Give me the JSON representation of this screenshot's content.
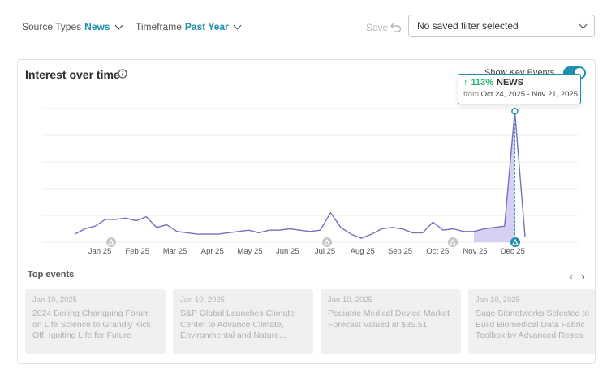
{
  "filters": {
    "source_label": "Source Types",
    "source_value": "News",
    "timeframe_label": "Timeframe",
    "timeframe_value": "Past Year",
    "save_label": "Save",
    "saved_filter_value": "No saved filter selected"
  },
  "card": {
    "title": "Interest over time",
    "key_events_label": "Show Key Events",
    "key_events_on": true,
    "tooltip": {
      "pct": "113%",
      "source": "NEWS",
      "from_label": "from",
      "range": "Oct 24, 2025 - Nov 21, 2025"
    }
  },
  "chart_data": {
    "type": "area",
    "xlabel": "",
    "ylabel": "",
    "x_ticks": [
      "Jan 25",
      "Feb 25",
      "Mar 25",
      "Apr 25",
      "May 25",
      "Jun 25",
      "Jul 25",
      "Aug 25",
      "Sep 25",
      "Oct 25",
      "Nov 25",
      "Dec 25"
    ],
    "grid": true,
    "line_color": "#7b6cc4",
    "fill_color": "#c9c0f0",
    "series": [
      {
        "values": [
          6,
          10,
          12,
          17,
          17,
          18,
          16,
          19,
          11,
          13,
          8,
          7,
          6,
          6,
          6,
          7,
          8,
          9,
          7,
          9,
          9,
          10,
          9,
          8,
          9,
          22,
          11,
          6,
          3,
          6,
          10,
          11,
          10,
          7,
          7,
          15,
          9,
          10,
          8,
          8,
          10,
          11,
          12,
          98,
          4
        ]
      }
    ],
    "ylim": [
      0,
      100
    ],
    "highlight_index": 43,
    "key_event_markers": [
      "Feb 25",
      "Jul 25",
      "Oct 25",
      "Dec 25"
    ]
  },
  "top_events": {
    "title": "Top events",
    "items": [
      {
        "date": "Jan 10, 2025",
        "title": "2024 Beijing Changping Forum on Life Science to Grandly Kick Off, Igniting Life for Future"
      },
      {
        "date": "Jan 10, 2025",
        "title": "S&P Global Launches Climate Center to Advance Climate, Environmental and Nature..."
      },
      {
        "date": "Jan 10, 2025",
        "title": "Pediatric Medical Device Market Forecast Valued at $35.51"
      },
      {
        "date": "Jan 10, 2025",
        "title": "Sage Bionetworks Selected to Build Biomedical Data Fabric Toolbox by Advanced Resea"
      }
    ]
  }
}
